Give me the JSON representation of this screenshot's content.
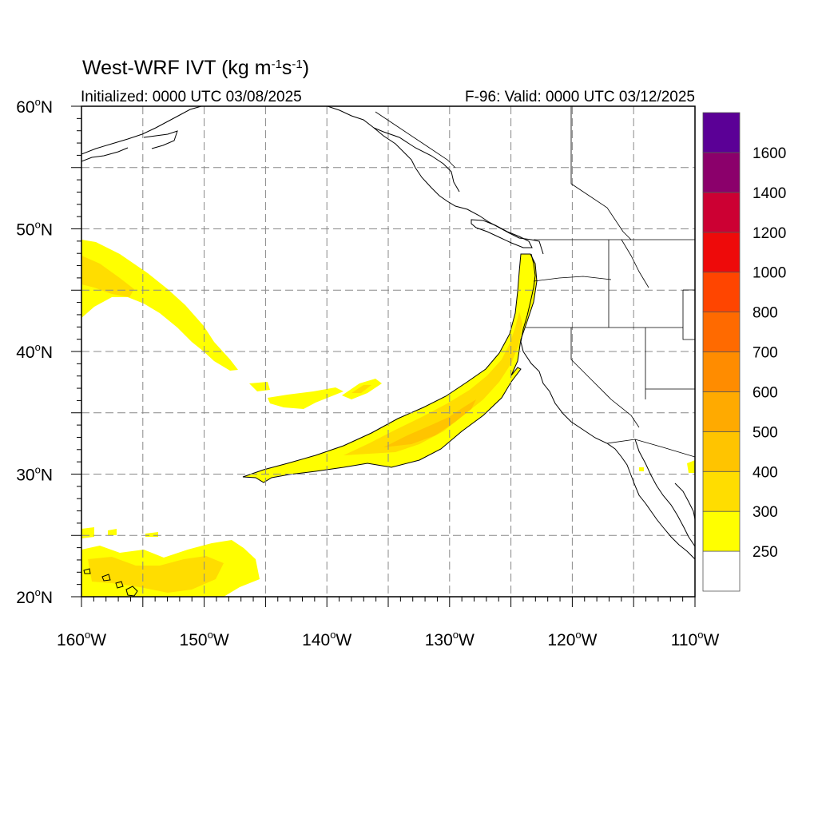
{
  "title": {
    "prefix": "West-WRF IVT (kg m",
    "sup1": "-1",
    "mid": "s",
    "sup2": "-1",
    "suffix": ")"
  },
  "subtitle_left": "Initialized: 0000 UTC 03/08/2025",
  "subtitle_right": "F-96: Valid: 0000 UTC 03/12/2025",
  "map": {
    "lon_range": [
      -160,
      -110
    ],
    "lat_range": [
      20,
      60
    ],
    "grid_lon_step": 5,
    "grid_lat_step": 5,
    "lon_labels": [
      {
        "lon": -160,
        "text": "160",
        "hemi": "W"
      },
      {
        "lon": -150,
        "text": "150",
        "hemi": "W"
      },
      {
        "lon": -140,
        "text": "140",
        "hemi": "W"
      },
      {
        "lon": -130,
        "text": "130",
        "hemi": "W"
      },
      {
        "lon": -120,
        "text": "120",
        "hemi": "W"
      },
      {
        "lon": -110,
        "text": "110",
        "hemi": "W"
      }
    ],
    "lat_labels": [
      {
        "lat": 60,
        "text": "60",
        "hemi": "N"
      },
      {
        "lat": 50,
        "text": "50",
        "hemi": "N"
      },
      {
        "lat": 40,
        "text": "40",
        "hemi": "N"
      },
      {
        "lat": 30,
        "text": "30",
        "hemi": "N"
      },
      {
        "lat": 20,
        "text": "20",
        "hemi": "N"
      }
    ]
  },
  "colorbar": {
    "levels": [
      "250",
      "300",
      "400",
      "500",
      "600",
      "700",
      "800",
      "1000",
      "1200",
      "1400",
      "1600"
    ],
    "colors": [
      "#ffffff",
      "#ffff00",
      "#ffdd00",
      "#ffc400",
      "#ffaa00",
      "#ff8c00",
      "#ff6a00",
      "#ff4500",
      "#ee0a0a",
      "#cc0033",
      "#8b006b",
      "#5b0096"
    ]
  }
}
